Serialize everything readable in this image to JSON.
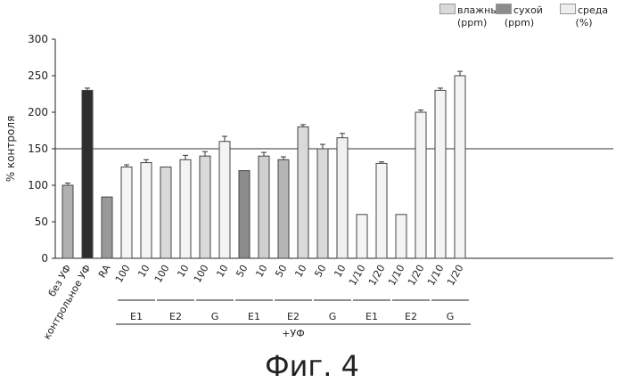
{
  "legend": [
    {
      "label": "влажный",
      "unit": "(ppm)",
      "color": "#d9d9d9"
    },
    {
      "label": "сухой",
      "unit": "(ppm)",
      "color": "#8c8c8c"
    },
    {
      "label": "среда",
      "unit": "(%)",
      "color": "#eeeeee"
    }
  ],
  "caption": "Фиг. 4",
  "chart_data": {
    "type": "bar",
    "ylabel": "% контроля",
    "ylim": [
      0,
      300
    ],
    "yticks": [
      0,
      50,
      100,
      150,
      200,
      250,
      300
    ],
    "reference_line": 150,
    "grid": false,
    "legend_position": "top-right",
    "categories": [
      "без УФ",
      "контрольное УФ",
      "RA",
      "100",
      "10",
      "100",
      "10",
      "100",
      "10",
      "50",
      "10",
      "50",
      "10",
      "50",
      "10",
      "1/10",
      "1/20",
      "1/10",
      "1/20",
      "1/10",
      "1/20"
    ],
    "values": [
      100,
      230,
      84,
      125,
      131,
      125,
      135,
      140,
      160,
      120,
      140,
      135,
      180,
      150,
      165,
      60,
      130,
      60,
      200,
      230,
      250
    ],
    "errors": [
      3,
      3,
      0,
      3,
      4,
      0,
      6,
      6,
      7,
      0,
      5,
      4,
      3,
      6,
      6,
      0,
      2,
      0,
      3,
      3,
      6
    ],
    "fills": [
      "#b0b0b0",
      "#2e2e2e",
      "#9a9a9a",
      "#f4f4f4",
      "#f4f4f4",
      "#d9d9d9",
      "#f4f4f4",
      "#d9d9d9",
      "#f4f4f4",
      "#8c8c8c",
      "#cfcfcf",
      "#b5b5b5",
      "#d9d9d9",
      "#d9d9d9",
      "#f0f0f0",
      "#f4f4f4",
      "#f4f4f4",
      "#f4f4f4",
      "#f4f4f4",
      "#f4f4f4",
      "#f4f4f4"
    ],
    "groups": [
      {
        "label": "E1",
        "start": 3,
        "end": 4
      },
      {
        "label": "E2",
        "start": 5,
        "end": 6
      },
      {
        "label": "G",
        "start": 7,
        "end": 8
      },
      {
        "label": "E1",
        "start": 9,
        "end": 10
      },
      {
        "label": "E2",
        "start": 11,
        "end": 12
      },
      {
        "label": "G",
        "start": 13,
        "end": 14
      },
      {
        "label": "E1",
        "start": 15,
        "end": 16
      },
      {
        "label": "E2",
        "start": 17,
        "end": 18
      },
      {
        "label": "G",
        "start": 19,
        "end": 20
      }
    ],
    "supergroup": {
      "label": "+УФ",
      "start": 3,
      "end": 20
    }
  }
}
